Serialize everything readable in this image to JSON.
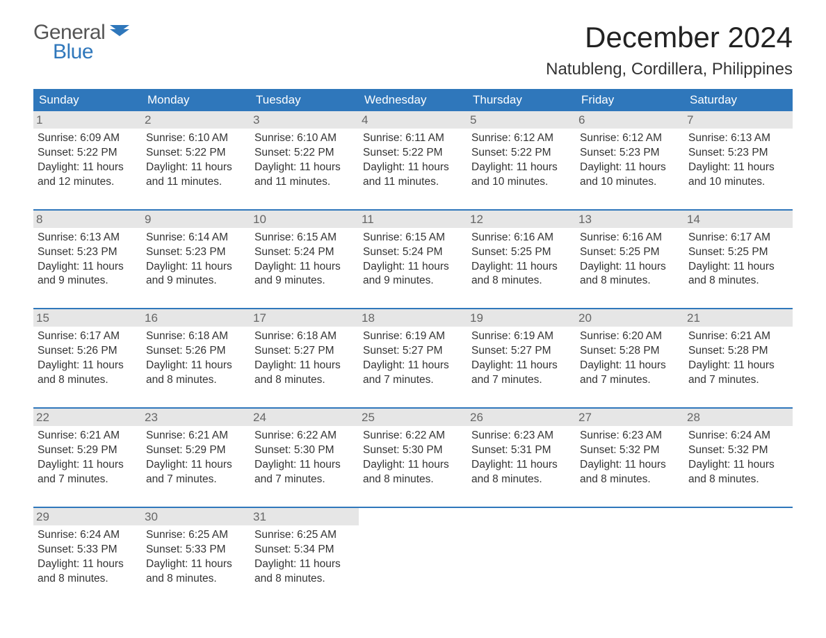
{
  "logo": {
    "text1": "General",
    "text2": "Blue",
    "icon_color": "#2f77bb"
  },
  "title": "December 2024",
  "location": "Natubleng, Cordillera, Philippines",
  "colors": {
    "header_bg": "#2f77bb",
    "header_text": "#ffffff",
    "daynum_bg": "#e6e6e6",
    "daynum_text": "#666666",
    "week_border": "#2f77bb",
    "body_text": "#333333",
    "page_bg": "#ffffff"
  },
  "typography": {
    "title_fontsize": 42,
    "location_fontsize": 24,
    "dayheader_fontsize": 17,
    "daynum_fontsize": 17,
    "body_fontsize": 15.5
  },
  "day_headers": [
    "Sunday",
    "Monday",
    "Tuesday",
    "Wednesday",
    "Thursday",
    "Friday",
    "Saturday"
  ],
  "weeks": [
    [
      {
        "n": "1",
        "sunrise": "Sunrise: 6:09 AM",
        "sunset": "Sunset: 5:22 PM",
        "dl1": "Daylight: 11 hours",
        "dl2": "and 12 minutes."
      },
      {
        "n": "2",
        "sunrise": "Sunrise: 6:10 AM",
        "sunset": "Sunset: 5:22 PM",
        "dl1": "Daylight: 11 hours",
        "dl2": "and 11 minutes."
      },
      {
        "n": "3",
        "sunrise": "Sunrise: 6:10 AM",
        "sunset": "Sunset: 5:22 PM",
        "dl1": "Daylight: 11 hours",
        "dl2": "and 11 minutes."
      },
      {
        "n": "4",
        "sunrise": "Sunrise: 6:11 AM",
        "sunset": "Sunset: 5:22 PM",
        "dl1": "Daylight: 11 hours",
        "dl2": "and 11 minutes."
      },
      {
        "n": "5",
        "sunrise": "Sunrise: 6:12 AM",
        "sunset": "Sunset: 5:22 PM",
        "dl1": "Daylight: 11 hours",
        "dl2": "and 10 minutes."
      },
      {
        "n": "6",
        "sunrise": "Sunrise: 6:12 AM",
        "sunset": "Sunset: 5:23 PM",
        "dl1": "Daylight: 11 hours",
        "dl2": "and 10 minutes."
      },
      {
        "n": "7",
        "sunrise": "Sunrise: 6:13 AM",
        "sunset": "Sunset: 5:23 PM",
        "dl1": "Daylight: 11 hours",
        "dl2": "and 10 minutes."
      }
    ],
    [
      {
        "n": "8",
        "sunrise": "Sunrise: 6:13 AM",
        "sunset": "Sunset: 5:23 PM",
        "dl1": "Daylight: 11 hours",
        "dl2": "and 9 minutes."
      },
      {
        "n": "9",
        "sunrise": "Sunrise: 6:14 AM",
        "sunset": "Sunset: 5:23 PM",
        "dl1": "Daylight: 11 hours",
        "dl2": "and 9 minutes."
      },
      {
        "n": "10",
        "sunrise": "Sunrise: 6:15 AM",
        "sunset": "Sunset: 5:24 PM",
        "dl1": "Daylight: 11 hours",
        "dl2": "and 9 minutes."
      },
      {
        "n": "11",
        "sunrise": "Sunrise: 6:15 AM",
        "sunset": "Sunset: 5:24 PM",
        "dl1": "Daylight: 11 hours",
        "dl2": "and 9 minutes."
      },
      {
        "n": "12",
        "sunrise": "Sunrise: 6:16 AM",
        "sunset": "Sunset: 5:25 PM",
        "dl1": "Daylight: 11 hours",
        "dl2": "and 8 minutes."
      },
      {
        "n": "13",
        "sunrise": "Sunrise: 6:16 AM",
        "sunset": "Sunset: 5:25 PM",
        "dl1": "Daylight: 11 hours",
        "dl2": "and 8 minutes."
      },
      {
        "n": "14",
        "sunrise": "Sunrise: 6:17 AM",
        "sunset": "Sunset: 5:25 PM",
        "dl1": "Daylight: 11 hours",
        "dl2": "and 8 minutes."
      }
    ],
    [
      {
        "n": "15",
        "sunrise": "Sunrise: 6:17 AM",
        "sunset": "Sunset: 5:26 PM",
        "dl1": "Daylight: 11 hours",
        "dl2": "and 8 minutes."
      },
      {
        "n": "16",
        "sunrise": "Sunrise: 6:18 AM",
        "sunset": "Sunset: 5:26 PM",
        "dl1": "Daylight: 11 hours",
        "dl2": "and 8 minutes."
      },
      {
        "n": "17",
        "sunrise": "Sunrise: 6:18 AM",
        "sunset": "Sunset: 5:27 PM",
        "dl1": "Daylight: 11 hours",
        "dl2": "and 8 minutes."
      },
      {
        "n": "18",
        "sunrise": "Sunrise: 6:19 AM",
        "sunset": "Sunset: 5:27 PM",
        "dl1": "Daylight: 11 hours",
        "dl2": "and 7 minutes."
      },
      {
        "n": "19",
        "sunrise": "Sunrise: 6:19 AM",
        "sunset": "Sunset: 5:27 PM",
        "dl1": "Daylight: 11 hours",
        "dl2": "and 7 minutes."
      },
      {
        "n": "20",
        "sunrise": "Sunrise: 6:20 AM",
        "sunset": "Sunset: 5:28 PM",
        "dl1": "Daylight: 11 hours",
        "dl2": "and 7 minutes."
      },
      {
        "n": "21",
        "sunrise": "Sunrise: 6:21 AM",
        "sunset": "Sunset: 5:28 PM",
        "dl1": "Daylight: 11 hours",
        "dl2": "and 7 minutes."
      }
    ],
    [
      {
        "n": "22",
        "sunrise": "Sunrise: 6:21 AM",
        "sunset": "Sunset: 5:29 PM",
        "dl1": "Daylight: 11 hours",
        "dl2": "and 7 minutes."
      },
      {
        "n": "23",
        "sunrise": "Sunrise: 6:21 AM",
        "sunset": "Sunset: 5:29 PM",
        "dl1": "Daylight: 11 hours",
        "dl2": "and 7 minutes."
      },
      {
        "n": "24",
        "sunrise": "Sunrise: 6:22 AM",
        "sunset": "Sunset: 5:30 PM",
        "dl1": "Daylight: 11 hours",
        "dl2": "and 7 minutes."
      },
      {
        "n": "25",
        "sunrise": "Sunrise: 6:22 AM",
        "sunset": "Sunset: 5:30 PM",
        "dl1": "Daylight: 11 hours",
        "dl2": "and 8 minutes."
      },
      {
        "n": "26",
        "sunrise": "Sunrise: 6:23 AM",
        "sunset": "Sunset: 5:31 PM",
        "dl1": "Daylight: 11 hours",
        "dl2": "and 8 minutes."
      },
      {
        "n": "27",
        "sunrise": "Sunrise: 6:23 AM",
        "sunset": "Sunset: 5:32 PM",
        "dl1": "Daylight: 11 hours",
        "dl2": "and 8 minutes."
      },
      {
        "n": "28",
        "sunrise": "Sunrise: 6:24 AM",
        "sunset": "Sunset: 5:32 PM",
        "dl1": "Daylight: 11 hours",
        "dl2": "and 8 minutes."
      }
    ],
    [
      {
        "n": "29",
        "sunrise": "Sunrise: 6:24 AM",
        "sunset": "Sunset: 5:33 PM",
        "dl1": "Daylight: 11 hours",
        "dl2": "and 8 minutes."
      },
      {
        "n": "30",
        "sunrise": "Sunrise: 6:25 AM",
        "sunset": "Sunset: 5:33 PM",
        "dl1": "Daylight: 11 hours",
        "dl2": "and 8 minutes."
      },
      {
        "n": "31",
        "sunrise": "Sunrise: 6:25 AM",
        "sunset": "Sunset: 5:34 PM",
        "dl1": "Daylight: 11 hours",
        "dl2": "and 8 minutes."
      },
      null,
      null,
      null,
      null
    ]
  ]
}
